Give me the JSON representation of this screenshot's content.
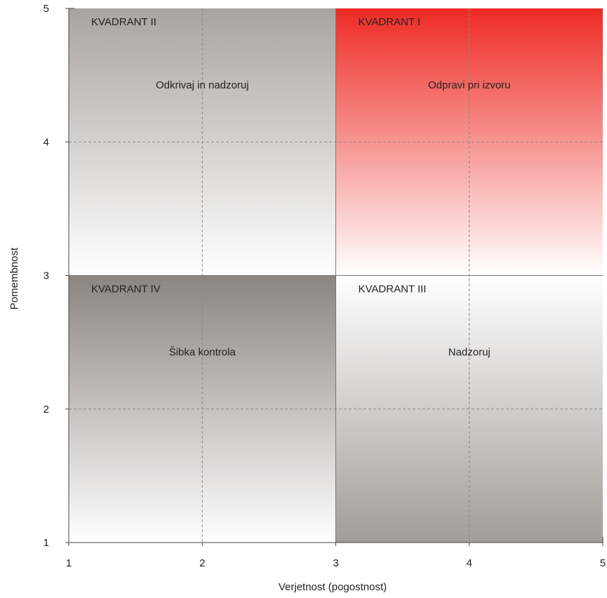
{
  "chart_data": {
    "type": "quadrant",
    "xlabel": "Verjetnost (pogostnost)",
    "ylabel": "Pomembnost",
    "xlim": [
      1,
      5
    ],
    "ylim": [
      1,
      5
    ],
    "x_ticks": [
      "1",
      "2",
      "3",
      "4",
      "5"
    ],
    "y_ticks": [
      "1",
      "2",
      "3",
      "4",
      "5"
    ],
    "grid": "dashed",
    "split": {
      "x": 3,
      "y": 3
    },
    "quadrants": [
      {
        "id": "q1",
        "title": "KVADRANT I",
        "label": "Odpravi pri izvoru",
        "x_range": [
          3,
          5
        ],
        "y_range": [
          3,
          5
        ],
        "gradient_top": "#ee2a24",
        "gradient_bottom": "#ffffff"
      },
      {
        "id": "q2",
        "title": "KVADRANT II",
        "label": "Odkrivaj in nadzoruj",
        "x_range": [
          1,
          3
        ],
        "y_range": [
          3,
          5
        ],
        "gradient_top": "#a8a4a1",
        "gradient_bottom": "#ffffff"
      },
      {
        "id": "q3",
        "title": "KVADRANT III",
        "label": "Nadzoruj",
        "x_range": [
          3,
          5
        ],
        "y_range": [
          1,
          3
        ],
        "gradient_top": "#ffffff",
        "gradient_bottom": "#a19d9a"
      },
      {
        "id": "q4",
        "title": "KVADRANT IV",
        "label": "Šibka kontrola",
        "x_range": [
          1,
          3
        ],
        "y_range": [
          1,
          3
        ],
        "gradient_top": "#8b8582",
        "gradient_bottom": "#ffffff"
      }
    ]
  }
}
